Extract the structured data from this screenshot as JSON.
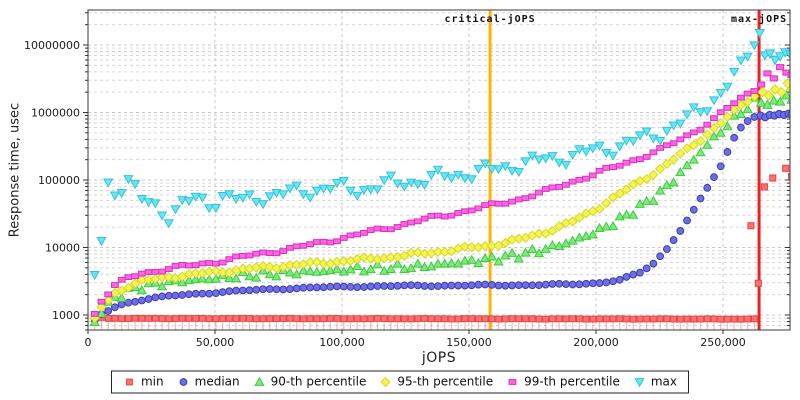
{
  "axes": {
    "x": {
      "label": "jOPS",
      "tick_labels": [
        "0",
        "50,000",
        "100,000",
        "150,000",
        "200,000",
        "250,000"
      ],
      "tick_values": [
        0,
        50000,
        100000,
        150000,
        200000,
        250000
      ],
      "min": 0,
      "max": 276400
    },
    "y": {
      "label": "Response time, usec",
      "tick_labels": [
        "1000",
        "10000",
        "100000",
        "1000000",
        "10000000"
      ],
      "tick_values": [
        1000,
        10000,
        100000,
        1000000,
        10000000
      ],
      "scale": "log",
      "min": 600,
      "max": 33000000
    }
  },
  "legend": {
    "items": [
      {
        "label": "min",
        "marker": "square",
        "fill": "#ff7070",
        "edge": "#e04848"
      },
      {
        "label": "median",
        "marker": "circle",
        "fill": "#6e6ee0",
        "edge": "#3c3cb4"
      },
      {
        "label": "90-th percentile",
        "marker": "triangle-up",
        "fill": "#7ee87e",
        "edge": "#3ecc3e"
      },
      {
        "label": "95-th percentile",
        "marker": "diamond",
        "fill": "#f4f455",
        "edge": "#d8d820"
      },
      {
        "label": "99-th percentile",
        "marker": "rect-h",
        "fill": "#f866e0",
        "edge": "#d832c0"
      },
      {
        "label": "max",
        "marker": "triangle-down",
        "fill": "#6ce4f0",
        "edge": "#30c4dc"
      }
    ]
  },
  "chart_data": {
    "type": "scatter",
    "x_unit": "jOPS",
    "y_unit": "usec",
    "grid": true,
    "sample_step_jops": 2650,
    "sample_count": 99,
    "annotations": [
      {
        "label": "critical-jOPS",
        "x": 158300,
        "color": "#ffb400",
        "width": 3
      },
      {
        "label": "max-jOPS",
        "x": 264200,
        "color": "#ee2020",
        "width": 3
      }
    ],
    "series": [
      {
        "name": "min",
        "marker": "square",
        "fill": "#ff7070",
        "edge": "#e04848",
        "impulse": true,
        "stem_color": "rgba(255,130,130,0.55)",
        "jitter": {
          "amp": 0.004,
          "f1": 0.9,
          "p1": 0.3
        },
        "anchors": [
          [
            2650,
            950
          ],
          [
            7950,
            890
          ],
          [
            262350,
            870
          ]
        ],
        "tail": [
          [
            261000,
            21000
          ],
          [
            263900,
            2950
          ],
          [
            266300,
            79000
          ],
          [
            269600,
            107000
          ],
          [
            274700,
            149000
          ],
          [
            277000,
            113000
          ]
        ]
      },
      {
        "name": "median",
        "marker": "circle",
        "fill": "#6e6ee0",
        "edge": "#3c3cb4",
        "impulse": false,
        "jitter": {
          "amp": 0.012,
          "f1": 0.55,
          "p1": 1.0
        },
        "anchors": [
          [
            2650,
            820
          ],
          [
            5300,
            1020
          ],
          [
            7950,
            1150
          ],
          [
            10600,
            1300
          ],
          [
            13250,
            1430
          ],
          [
            15900,
            1530
          ],
          [
            21200,
            1680
          ],
          [
            26500,
            1800
          ],
          [
            31800,
            1900
          ],
          [
            42400,
            2050
          ],
          [
            53000,
            2200
          ],
          [
            66250,
            2350
          ],
          [
            79500,
            2480
          ],
          [
            92750,
            2570
          ],
          [
            106000,
            2650
          ],
          [
            132500,
            2720
          ],
          [
            159000,
            2760
          ],
          [
            180200,
            2800
          ],
          [
            190800,
            2850
          ],
          [
            201400,
            3000
          ],
          [
            209350,
            3300
          ],
          [
            217300,
            4200
          ],
          [
            222600,
            5800
          ],
          [
            227900,
            9500
          ],
          [
            233200,
            18000
          ],
          [
            238500,
            36000
          ],
          [
            243800,
            75000
          ],
          [
            249100,
            160000
          ],
          [
            251750,
            260000
          ],
          [
            254400,
            420000
          ],
          [
            257050,
            600000
          ],
          [
            259700,
            760000
          ],
          [
            262350,
            880000
          ]
        ],
        "tail": [
          [
            264800,
            900000
          ],
          [
            266600,
            850000
          ],
          [
            268400,
            920000
          ],
          [
            270300,
            900000
          ],
          [
            272100,
            950000
          ],
          [
            274000,
            920000
          ],
          [
            275800,
            960000
          ],
          [
            277000,
            930000
          ]
        ]
      },
      {
        "name": "90-th percentile",
        "marker": "triangle-up",
        "fill": "#7ee87e",
        "edge": "#3ecc3e",
        "impulse": false,
        "jitter": {
          "amp": 0.06,
          "f1": 1.9,
          "p1": 2.0
        },
        "anchors": [
          [
            2650,
            780
          ],
          [
            5300,
            1150
          ],
          [
            10600,
            1800
          ],
          [
            15900,
            2300
          ],
          [
            21200,
            2650
          ],
          [
            31800,
            3050
          ],
          [
            42400,
            3350
          ],
          [
            53000,
            3600
          ],
          [
            66250,
            3950
          ],
          [
            79500,
            4250
          ],
          [
            92750,
            4500
          ],
          [
            106000,
            4800
          ],
          [
            119250,
            5000
          ],
          [
            132500,
            5300
          ],
          [
            145750,
            6000
          ],
          [
            159000,
            6800
          ],
          [
            169600,
            7800
          ],
          [
            180200,
            9500
          ],
          [
            190800,
            12500
          ],
          [
            201400,
            18000
          ],
          [
            209350,
            26000
          ],
          [
            217300,
            40000
          ],
          [
            225250,
            65000
          ],
          [
            230550,
            100000
          ],
          [
            235850,
            160000
          ],
          [
            241150,
            260000
          ],
          [
            246450,
            420000
          ],
          [
            251750,
            650000
          ],
          [
            257050,
            1000000
          ],
          [
            262350,
            1450000
          ]
        ],
        "tail": [
          [
            265000,
            1400000
          ],
          [
            267500,
            1300000
          ],
          [
            270000,
            1500000
          ],
          [
            272500,
            1450000
          ],
          [
            275000,
            1800000
          ],
          [
            277000,
            1550000
          ]
        ]
      },
      {
        "name": "95-th percentile",
        "marker": "diamond",
        "fill": "#f4f455",
        "edge": "#d8d820",
        "impulse": false,
        "jitter": {
          "amp": 0.03,
          "f1": 0.8,
          "p1": 0.5
        },
        "anchors": [
          [
            2650,
            850
          ],
          [
            5300,
            1300
          ],
          [
            10600,
            2100
          ],
          [
            15900,
            2700
          ],
          [
            21200,
            3150
          ],
          [
            31800,
            3650
          ],
          [
            42400,
            4050
          ],
          [
            53000,
            4450
          ],
          [
            66250,
            4950
          ],
          [
            79500,
            5450
          ],
          [
            92750,
            5950
          ],
          [
            106000,
            6550
          ],
          [
            119250,
            7250
          ],
          [
            132500,
            8250
          ],
          [
            145750,
            9400
          ],
          [
            159000,
            10800
          ],
          [
            169600,
            13000
          ],
          [
            180200,
            17000
          ],
          [
            190800,
            24000
          ],
          [
            201400,
            40000
          ],
          [
            209350,
            62000
          ],
          [
            217300,
            95000
          ],
          [
            225250,
            145000
          ],
          [
            230550,
            200000
          ],
          [
            235850,
            280000
          ],
          [
            241150,
            400000
          ],
          [
            246450,
            580000
          ],
          [
            251750,
            850000
          ],
          [
            257050,
            1250000
          ],
          [
            262350,
            1800000
          ]
        ],
        "tail": [
          [
            265500,
            2000000
          ],
          [
            268000,
            1800000
          ],
          [
            270500,
            2200000
          ],
          [
            273000,
            2000000
          ],
          [
            275500,
            2700000
          ],
          [
            277000,
            2200000
          ]
        ]
      },
      {
        "name": "99-th percentile",
        "marker": "rect-h",
        "fill": "#f866e0",
        "edge": "#d832c0",
        "impulse": false,
        "jitter": {
          "amp": 0.035,
          "f1": 0.7,
          "p1": 4.0
        },
        "anchors": [
          [
            2650,
            1050
          ],
          [
            5300,
            1650
          ],
          [
            10600,
            2700
          ],
          [
            15900,
            3500
          ],
          [
            21200,
            4150
          ],
          [
            31800,
            4900
          ],
          [
            42400,
            5500
          ],
          [
            53000,
            6400
          ],
          [
            66250,
            7900
          ],
          [
            79500,
            9600
          ],
          [
            92750,
            12000
          ],
          [
            106000,
            15500
          ],
          [
            119250,
            20000
          ],
          [
            132500,
            26000
          ],
          [
            145750,
            33000
          ],
          [
            159000,
            42000
          ],
          [
            169600,
            52000
          ],
          [
            180200,
            68000
          ],
          [
            190800,
            95000
          ],
          [
            201400,
            130000
          ],
          [
            209350,
            165000
          ],
          [
            217300,
            215000
          ],
          [
            225250,
            280000
          ],
          [
            230550,
            350000
          ],
          [
            235850,
            450000
          ],
          [
            241150,
            600000
          ],
          [
            246450,
            800000
          ],
          [
            251750,
            1150000
          ],
          [
            257050,
            1600000
          ],
          [
            262350,
            2200000
          ]
        ],
        "tail": [
          [
            265000,
            2600000
          ],
          [
            267500,
            3800000
          ],
          [
            270000,
            3200000
          ],
          [
            272500,
            4700000
          ],
          [
            275000,
            3900000
          ],
          [
            277000,
            3600000
          ]
        ]
      },
      {
        "name": "max",
        "marker": "triangle-down",
        "fill": "#6ce4f0",
        "edge": "#30c4dc",
        "impulse": false,
        "jitter": {
          "amp": 0.13,
          "f1": 0.85,
          "p1": 1.3
        },
        "anchors": [
          [
            2650,
            3800
          ],
          [
            5300,
            13000
          ],
          [
            7950,
            90000
          ],
          [
            10600,
            70000
          ],
          [
            15900,
            95000
          ],
          [
            21200,
            50000
          ],
          [
            26500,
            42000
          ],
          [
            31800,
            30000
          ],
          [
            37100,
            42000
          ],
          [
            42400,
            52000
          ],
          [
            47700,
            45000
          ],
          [
            53000,
            58000
          ],
          [
            60950,
            48000
          ],
          [
            68900,
            58000
          ],
          [
            76850,
            62000
          ],
          [
            84800,
            68000
          ],
          [
            95400,
            78000
          ],
          [
            106000,
            72000
          ],
          [
            119250,
            88000
          ],
          [
            132500,
            100000
          ],
          [
            145750,
            120000
          ],
          [
            159000,
            140000
          ],
          [
            169600,
            170000
          ],
          [
            180200,
            200000
          ],
          [
            190800,
            230000
          ],
          [
            201400,
            280000
          ],
          [
            209350,
            320000
          ],
          [
            217300,
            400000
          ],
          [
            225250,
            500000
          ],
          [
            230550,
            620000
          ],
          [
            235850,
            800000
          ],
          [
            241150,
            1100000
          ],
          [
            246450,
            1600000
          ],
          [
            249100,
            2000000
          ],
          [
            251750,
            2600000
          ],
          [
            254400,
            3400000
          ],
          [
            257050,
            4500000
          ],
          [
            259700,
            7000000
          ],
          [
            262350,
            12000000
          ]
        ],
        "tail": [
          [
            264500,
            15000000
          ],
          [
            266500,
            7000000
          ],
          [
            268500,
            7500000
          ],
          [
            270500,
            6000000
          ],
          [
            272500,
            6800000
          ],
          [
            274500,
            7800000
          ],
          [
            276500,
            7200000
          ]
        ]
      }
    ]
  },
  "style": {
    "grid_minor_color": "#d6d6d6",
    "grid_major_color": "#c9c9c9",
    "border_color": "#3a3a3a",
    "tick_text_color": "#1c1c1c"
  }
}
